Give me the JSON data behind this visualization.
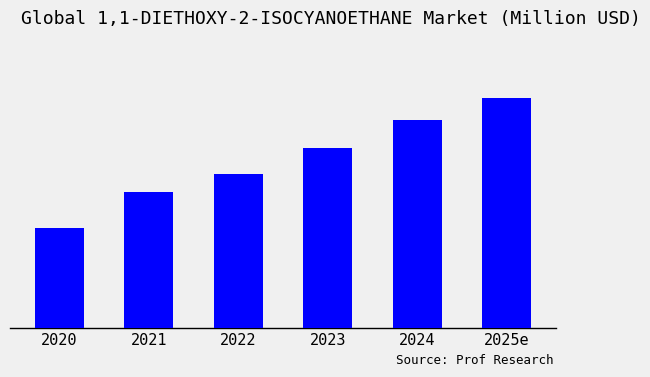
{
  "title": "Global 1,1-DIETHOXY-2-ISOCYANOETHANE Market (Million USD)",
  "categories": [
    "2020",
    "2021",
    "2022",
    "2023",
    "2024",
    "2025e"
  ],
  "values": [
    28,
    38,
    43,
    50,
    58,
    64
  ],
  "bar_color": "#0000FF",
  "background_color": "#f0f0f0",
  "plot_bg_color": "#f0f0f0",
  "source_text": "Source: Prof Research",
  "title_fontsize": 13,
  "tick_fontsize": 11,
  "source_fontsize": 9,
  "ylim": [
    0,
    80
  ]
}
